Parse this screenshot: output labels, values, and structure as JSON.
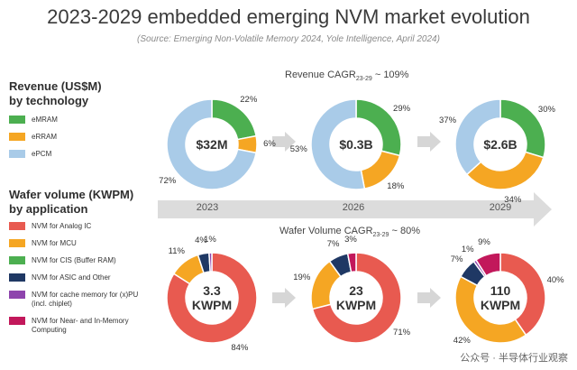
{
  "title": "2023-2029 embedded emerging NVM market evolution",
  "subtitle": "(Source: Emerging Non-Volatile Memory 2024, Yole Intelligence, April 2024)",
  "revenue_header": {
    "line1": "Revenue (US$M)",
    "line2": "by technology"
  },
  "wafer_header": {
    "line1": "Wafer volume (KWPM)",
    "line2": "by application"
  },
  "revenue_cagr": {
    "prefix": "Revenue CAGR",
    "sub": "23-29",
    "suffix": " ~ 109%"
  },
  "wafer_cagr": {
    "prefix": "Wafer Volume CAGR",
    "sub": "23-29",
    "suffix": " ~ 80%"
  },
  "years": [
    "2023",
    "2026",
    "2029"
  ],
  "watermark": "公众号 · 半导体行业观察",
  "colors": {
    "arrow": "#dcdcdc",
    "mram": "#4caf50",
    "rram": "#f5a623",
    "pcm": "#a9cbe8",
    "analog": "#e85a50",
    "mcu": "#f5a623",
    "cis": "#4caf50",
    "asic": "#1f3864",
    "cache": "#8e44ad",
    "imc": "#c2185b"
  },
  "chart_data": [
    {
      "type": "pie",
      "title": "Revenue (US$M) by technology",
      "legend": [
        {
          "label": "eMRAM",
          "color": "#4caf50"
        },
        {
          "label": "eRRAM",
          "color": "#f5a623"
        },
        {
          "label": "ePCM",
          "color": "#a9cbe8"
        }
      ],
      "donuts": [
        {
          "year": "2023",
          "center": "$32M",
          "slices": [
            {
              "name": "eMRAM",
              "value": 22,
              "label": "22%",
              "color": "#4caf50"
            },
            {
              "name": "eRRAM",
              "value": 6,
              "label": "6%",
              "color": "#f5a623"
            },
            {
              "name": "ePCM",
              "value": 72,
              "label": "72%",
              "color": "#a9cbe8"
            }
          ]
        },
        {
          "year": "2026",
          "center": "$0.3B",
          "slices": [
            {
              "name": "eMRAM",
              "value": 29,
              "label": "29%",
              "color": "#4caf50"
            },
            {
              "name": "eRRAM",
              "value": 18,
              "label": "18%",
              "color": "#f5a623"
            },
            {
              "name": "ePCM",
              "value": 53,
              "label": "53%",
              "color": "#a9cbe8"
            }
          ]
        },
        {
          "year": "2029",
          "center": "$2.6B",
          "slices": [
            {
              "name": "eMRAM",
              "value": 30,
              "label": "30%",
              "color": "#4caf50"
            },
            {
              "name": "eRRAM",
              "value": 34,
              "label": "34%",
              "color": "#f5a623"
            },
            {
              "name": "ePCM",
              "value": 37,
              "label": "37%",
              "color": "#a9cbe8"
            }
          ]
        }
      ]
    },
    {
      "type": "pie",
      "title": "Wafer volume (KWPM) by application",
      "legend": [
        {
          "label": "NVM for Analog IC",
          "color": "#e85a50"
        },
        {
          "label": "NVM for MCU",
          "color": "#f5a623"
        },
        {
          "label": "NVM for CIS (Buffer RAM)",
          "color": "#4caf50"
        },
        {
          "label": "NVM for ASIC and Other",
          "color": "#1f3864"
        },
        {
          "label": "NVM for cache memory for (x)PU (incl. chiplet)",
          "color": "#8e44ad"
        },
        {
          "label": "NVM for Near- and In-Memory Computing",
          "color": "#c2185b"
        }
      ],
      "donuts": [
        {
          "year": "2023",
          "center": "3.3\nKWPM",
          "slices": [
            {
              "name": "NVM for Analog IC",
              "value": 84,
              "label": "84%",
              "color": "#e85a50"
            },
            {
              "name": "NVM for MCU",
              "value": 11,
              "label": "11%",
              "color": "#f5a623"
            },
            {
              "name": "NVM for ASIC and Other",
              "value": 4,
              "label": "4%",
              "color": "#1f3864"
            },
            {
              "name": "NVM for cache memory for (x)PU (incl. chiplet)",
              "value": 1,
              "label": "1%",
              "color": "#8e44ad"
            }
          ]
        },
        {
          "year": "2026",
          "center": "23\nKWPM",
          "slices": [
            {
              "name": "NVM for Analog IC",
              "value": 71,
              "label": "71%",
              "color": "#e85a50"
            },
            {
              "name": "NVM for MCU",
              "value": 19,
              "label": "19%",
              "color": "#f5a623"
            },
            {
              "name": "NVM for ASIC and Other",
              "value": 7,
              "label": "7%",
              "color": "#1f3864"
            },
            {
              "name": "NVM for Near- and In-Memory Computing",
              "value": 3,
              "label": "3%",
              "color": "#c2185b"
            }
          ]
        },
        {
          "year": "2029",
          "center": "110\nKWPM",
          "slices": [
            {
              "name": "NVM for Analog IC",
              "value": 40,
              "label": "40%",
              "color": "#e85a50"
            },
            {
              "name": "NVM for MCU",
              "value": 42,
              "label": "42%",
              "color": "#f5a623"
            },
            {
              "name": "NVM for ASIC and Other",
              "value": 7,
              "label": "7%",
              "color": "#1f3864"
            },
            {
              "name": "NVM for cache memory for (x)PU (incl. chiplet)",
              "value": 1,
              "label": "1%",
              "color": "#8e44ad"
            },
            {
              "name": "NVM for Near- and In-Memory Computing",
              "value": 9,
              "label": "9%",
              "color": "#c2185b"
            }
          ]
        }
      ]
    }
  ]
}
